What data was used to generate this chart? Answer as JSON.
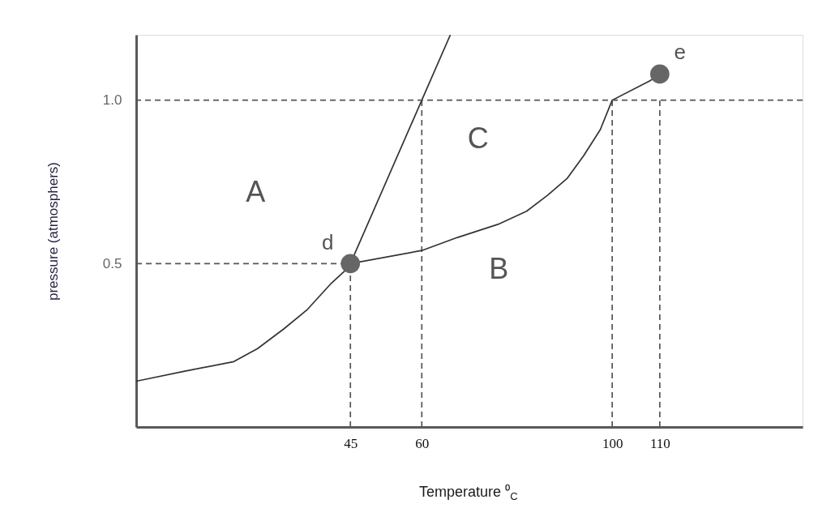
{
  "chart_data": {
    "type": "line",
    "xlabel": "Temperature ⁰$_{C}$",
    "ylabel": "pressure (atmosphers)",
    "xlim": [
      0,
      140
    ],
    "ylim": [
      0,
      1.2
    ],
    "xticks": [
      45,
      60,
      100,
      110
    ],
    "yticks": [
      0.5,
      {
        "value": 1.0,
        "label": "1.0"
      }
    ],
    "series": [
      {
        "type": "line",
        "color": "#555555",
        "line_style": "dashed",
        "x": [
          0,
          45
        ],
        "values": [
          0.5,
          0.5
        ]
      },
      {
        "type": "line",
        "color": "#555555",
        "line_style": "dashed",
        "x": [
          45,
          45
        ],
        "values": [
          0,
          0.5
        ]
      },
      {
        "type": "line",
        "color": "#555555",
        "line_style": "dashed",
        "x": [
          60,
          60
        ],
        "values": [
          0,
          1.0
        ]
      },
      {
        "type": "line",
        "color": "#555555",
        "line_style": "dashed",
        "x": [
          100,
          100
        ],
        "values": [
          0,
          1.0
        ]
      },
      {
        "type": "line",
        "color": "#555555",
        "line_style": "dashed",
        "x": [
          110,
          110
        ],
        "values": [
          0,
          1.0
        ]
      },
      {
        "color": "#333333",
        "x": [
          0,
          10,
          20.5,
          25.5,
          31,
          36,
          41,
          44,
          45,
          60,
          67.5,
          76,
          82,
          86.5,
          90.5,
          94,
          97.5,
          100,
          108,
          110
        ],
        "values": [
          0.14,
          0.17,
          0.2,
          0.24,
          0.3,
          0.36,
          0.44,
          0.48,
          0.5,
          0.54,
          0.58,
          0.62,
          0.66,
          0.71,
          0.76,
          0.83,
          0.91,
          1.0,
          1.06,
          1.08
        ]
      },
      {
        "color": "#333333",
        "x": [
          45,
          60,
          66
        ],
        "values": [
          0.5,
          1.0,
          1.2
        ]
      },
      {
        "type": "scatter",
        "color": "#666666",
        "marker": "circle",
        "x": [
          45,
          110
        ],
        "values": [
          0.5,
          1.08
        ]
      }
    ],
    "ref_lines": [
      {
        "axis": "y",
        "value": 1.0,
        "color": "#555555",
        "line_style": "dashed"
      }
    ],
    "annotations": [
      "A",
      "C",
      "B",
      {
        "text": "d",
        "x": 45,
        "y": 0.5
      },
      {
        "text": "e",
        "x": 110,
        "y": 1.08
      }
    ]
  }
}
